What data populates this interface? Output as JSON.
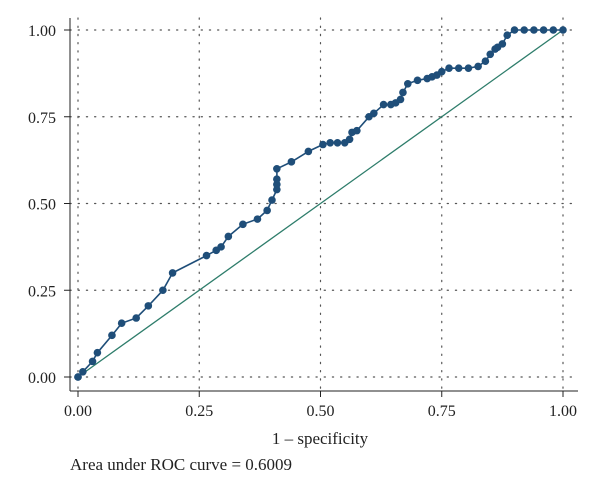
{
  "chart_data": {
    "type": "line",
    "xlabel": "1 – specificity",
    "ylabel": "",
    "title": "",
    "xlim": [
      0,
      1
    ],
    "ylim": [
      0,
      1
    ],
    "xticks": [
      "0.00",
      "0.25",
      "0.50",
      "0.75",
      "1.00"
    ],
    "yticks": [
      "0.00",
      "0.25",
      "0.50",
      "0.75",
      "1.00"
    ],
    "grid": "dotted",
    "colors": {
      "roc": "#1f4e79",
      "reference": "#2e7d6b"
    },
    "annotation": "Area under ROC curve = 0.6009",
    "series": [
      {
        "style": "line+markers",
        "x": [
          0.0,
          0.0,
          0.01,
          0.03,
          0.04,
          0.07,
          0.09,
          0.12,
          0.145,
          0.175,
          0.195,
          0.265,
          0.285,
          0.295,
          0.31,
          0.34,
          0.37,
          0.39,
          0.4,
          0.41,
          0.41,
          0.41,
          0.41,
          0.44,
          0.475,
          0.505,
          0.52,
          0.535,
          0.55,
          0.56,
          0.565,
          0.575,
          0.6,
          0.61,
          0.63,
          0.645,
          0.655,
          0.665,
          0.67,
          0.68,
          0.7,
          0.72,
          0.73,
          0.74,
          0.75,
          0.765,
          0.785,
          0.805,
          0.825,
          0.84,
          0.85,
          0.86,
          0.865,
          0.875,
          0.885,
          0.9,
          0.92,
          0.94,
          0.96,
          0.98,
          1.0
        ],
        "y": [
          0.0,
          0.0,
          0.015,
          0.045,
          0.07,
          0.12,
          0.155,
          0.17,
          0.205,
          0.25,
          0.3,
          0.35,
          0.365,
          0.375,
          0.405,
          0.44,
          0.455,
          0.48,
          0.51,
          0.54,
          0.555,
          0.57,
          0.6,
          0.62,
          0.65,
          0.67,
          0.675,
          0.675,
          0.675,
          0.685,
          0.705,
          0.71,
          0.75,
          0.76,
          0.785,
          0.785,
          0.79,
          0.8,
          0.82,
          0.845,
          0.855,
          0.86,
          0.865,
          0.87,
          0.88,
          0.89,
          0.89,
          0.89,
          0.895,
          0.91,
          0.93,
          0.945,
          0.95,
          0.96,
          0.985,
          1.0,
          1.0,
          1.0,
          1.0,
          1.0,
          1.0
        ]
      },
      {
        "style": "line",
        "x": [
          0,
          1
        ],
        "y": [
          0,
          1
        ]
      }
    ]
  }
}
